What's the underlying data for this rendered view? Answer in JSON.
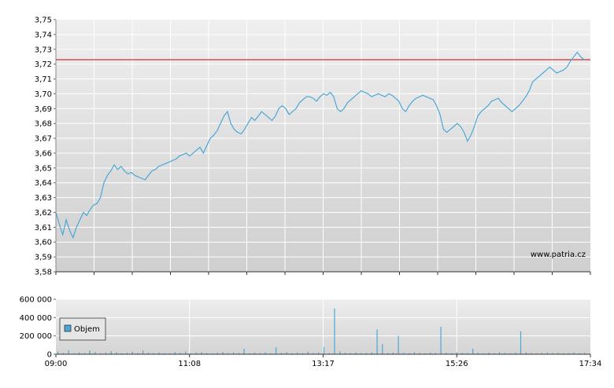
{
  "watermark": "www.patria.cz",
  "chart_data": [
    {
      "type": "line",
      "title": "",
      "xlabel": "",
      "ylabel": "",
      "ylim": [
        3.58,
        3.75
      ],
      "y_ticks": [
        "3,58",
        "3,59",
        "3,60",
        "3,61",
        "3,62",
        "3,63",
        "3,64",
        "3,65",
        "3,66",
        "3,67",
        "3,68",
        "3,69",
        "3,70",
        "3,71",
        "3,72",
        "3,73",
        "3,74",
        "3,75"
      ],
      "reference_line": {
        "value": 3.723,
        "color": "#cc0000"
      },
      "line_color": "#4aa8d8",
      "grid": true,
      "series": [
        {
          "values": [
            3.62,
            3.612,
            3.605,
            3.615,
            3.608,
            3.603,
            3.61,
            3.615,
            3.62,
            3.618,
            3.622,
            3.625,
            3.626,
            3.63,
            3.64,
            3.645,
            3.648,
            3.652,
            3.649,
            3.651,
            3.648,
            3.646,
            3.647,
            3.645,
            3.644,
            3.643,
            3.642,
            3.645,
            3.648,
            3.649,
            3.651,
            3.652,
            3.653,
            3.654,
            3.655,
            3.656,
            3.658,
            3.659,
            3.66,
            3.658,
            3.66,
            3.662,
            3.664,
            3.66,
            3.665,
            3.67,
            3.672,
            3.675,
            3.68,
            3.685,
            3.688,
            3.68,
            3.676,
            3.674,
            3.673,
            3.676,
            3.68,
            3.684,
            3.682,
            3.685,
            3.688,
            3.686,
            3.684,
            3.682,
            3.685,
            3.69,
            3.692,
            3.69,
            3.686,
            3.688,
            3.69,
            3.694,
            3.696,
            3.698,
            3.698,
            3.697,
            3.695,
            3.698,
            3.7,
            3.699,
            3.701,
            3.698,
            3.69,
            3.688,
            3.69,
            3.694,
            3.696,
            3.698,
            3.7,
            3.702,
            3.701,
            3.7,
            3.698,
            3.699,
            3.7,
            3.699,
            3.698,
            3.7,
            3.699,
            3.697,
            3.695,
            3.69,
            3.688,
            3.692,
            3.695,
            3.697,
            3.698,
            3.699,
            3.698,
            3.697,
            3.696,
            3.692,
            3.686,
            3.676,
            3.674,
            3.676,
            3.678,
            3.68,
            3.678,
            3.674,
            3.668,
            3.672,
            3.678,
            3.685,
            3.688,
            3.69,
            3.692,
            3.695,
            3.696,
            3.697,
            3.694,
            3.692,
            3.69,
            3.688,
            3.69,
            3.692,
            3.695,
            3.698,
            3.702,
            3.708,
            3.71,
            3.712,
            3.714,
            3.716,
            3.718,
            3.716,
            3.714,
            3.715,
            3.716,
            3.718,
            3.722,
            3.725,
            3.728,
            3.725,
            3.723
          ]
        }
      ]
    },
    {
      "type": "bar",
      "title": "",
      "xlabel": "",
      "ylabel": "",
      "ylim": [
        0,
        600000
      ],
      "y_ticks": [
        "0",
        "200 000",
        "400 000",
        "600 000"
      ],
      "x_ticks": [
        "09:00",
        "11:08",
        "13:17",
        "15:26",
        "17:34"
      ],
      "legend": {
        "label": "Objem",
        "position": "left"
      },
      "bar_color": "#4aa8d8",
      "grid": true,
      "series": [
        {
          "name": "Objem",
          "values": [
            30000,
            15000,
            45000,
            8000,
            20000,
            12000,
            40000,
            25000,
            10000,
            18000,
            35000,
            22000,
            9000,
            15000,
            28000,
            12000,
            40000,
            16000,
            11000,
            20000,
            13000,
            9000,
            24000,
            14000,
            30000,
            10000,
            18000,
            22000,
            12000,
            8000,
            15000,
            25000,
            11000,
            19000,
            14000,
            60000,
            9000,
            16000,
            12000,
            20000,
            10000,
            75000,
            14000,
            22000,
            9000,
            18000,
            12000,
            28000,
            15000,
            20000,
            80000,
            10000,
            500000,
            30000,
            15000,
            12000,
            18000,
            9000,
            14000,
            20000,
            270000,
            110000,
            12000,
            18000,
            200000,
            15000,
            10000,
            22000,
            14000,
            9000,
            18000,
            12000,
            300000,
            16000,
            10000,
            20000,
            14000,
            12000,
            60000,
            15000,
            9000,
            18000,
            12000,
            20000,
            14000,
            10000,
            16000,
            250000,
            20000,
            12000,
            9000,
            15000,
            18000,
            11000,
            14000,
            10000,
            12000,
            20000,
            9000,
            15000
          ]
        }
      ]
    }
  ]
}
